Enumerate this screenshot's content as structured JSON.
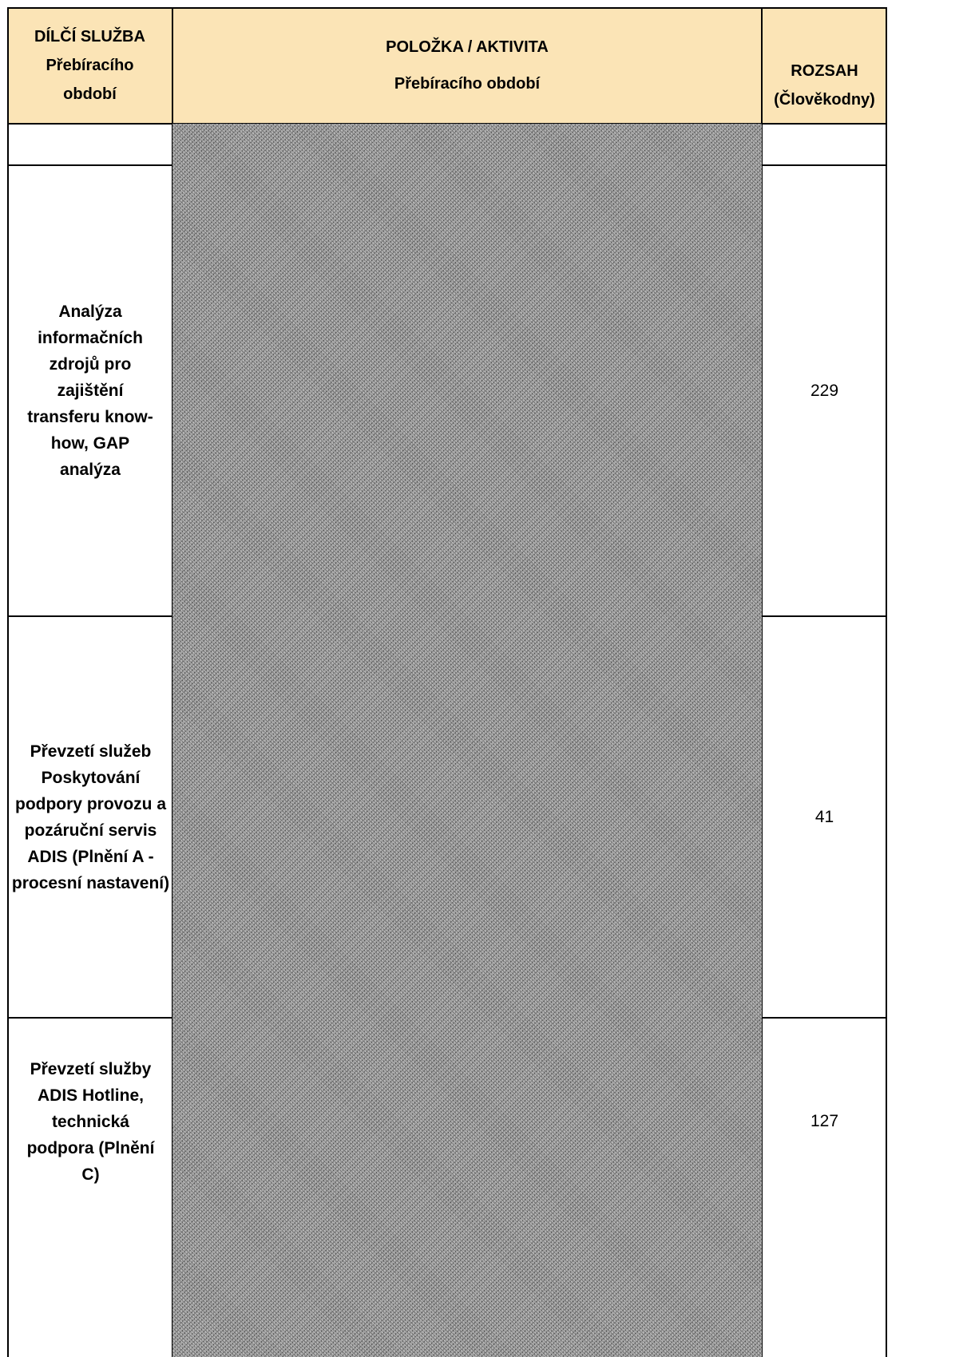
{
  "header": {
    "col1_line1": "DÍLČÍ SLUŽBA",
    "col1_line2": "Přebíracího období",
    "col2_line1": "POLOŽKA / AKTIVITA",
    "col2_line2": "Přebíracího období",
    "col3_line1": "ROZSAH",
    "col3_line2": "(Člověkodny)"
  },
  "rows": [
    {
      "service": "",
      "scope": ""
    },
    {
      "service": "Analýza informačních zdrojů pro zajištění transferu know-how, GAP analýza",
      "scope": "229"
    },
    {
      "service": "Převzetí služeb Poskytování podpory provozu a pozáruční servis ADIS (Plnění A - procesní nastavení)",
      "scope": "41"
    },
    {
      "service": "Převzetí služby ADIS Hotline, technická podpora (Plnění C)",
      "scope": "127"
    }
  ],
  "colors": {
    "header_bg": "#fbe4b6",
    "redaction": "#8e8e8e"
  }
}
